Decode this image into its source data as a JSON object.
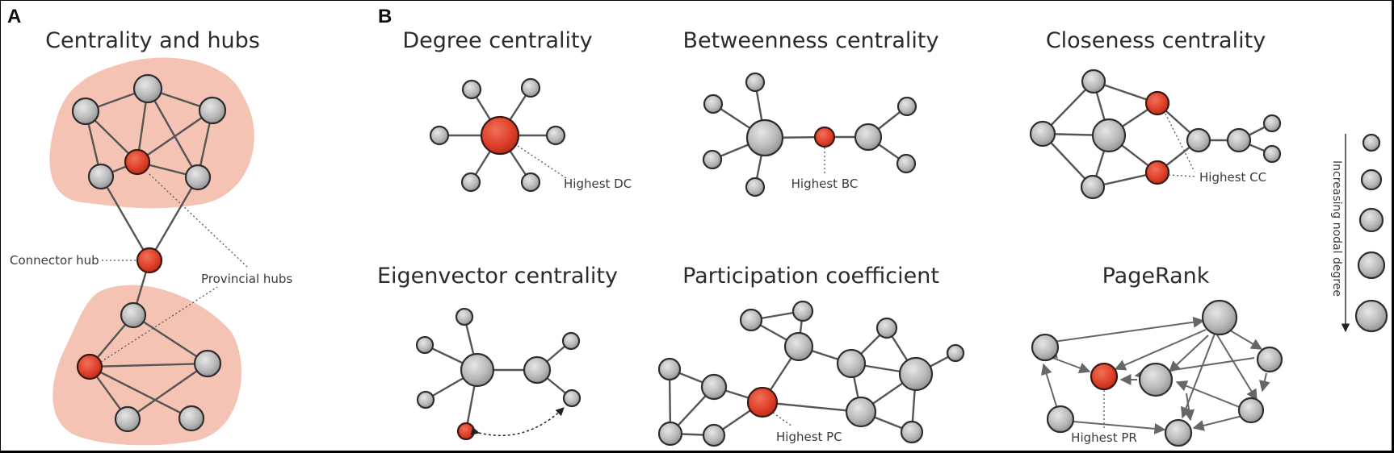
{
  "panels": {
    "a_letter": "A",
    "b_letter": "B"
  },
  "titles": {
    "hubs": "Centrality and hubs",
    "degree": "Degree centrality",
    "betweenness": "Betweenness centrality",
    "closeness": "Closeness centrality",
    "eigenvector": "Eigenvector centrality",
    "participation": "Participation coefficient",
    "pagerank": "PageRank"
  },
  "labels": {
    "connector_hub": "Connector hub",
    "provincial_hubs": "Provincial hubs",
    "highest_dc": "Highest DC",
    "highest_bc": "Highest BC",
    "highest_cc": "Highest CC",
    "highest_pc": "Highest PC",
    "highest_pr": "Highest PR",
    "degree_legend": "Increasing nodal degree"
  },
  "colors": {
    "hub_node": "#e0402a",
    "regular_node": "#b8b8b8",
    "module_shading": "#f2b8a6",
    "edge": "#555555"
  }
}
